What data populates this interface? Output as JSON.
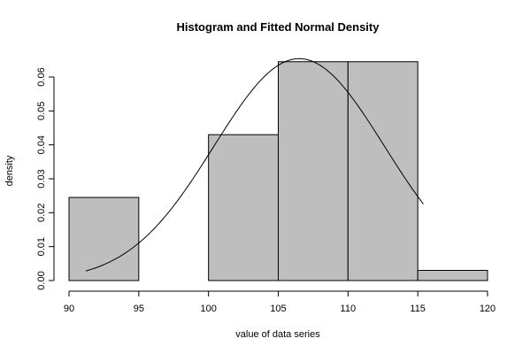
{
  "chart_data": {
    "type": "bar",
    "title": "Histogram and Fitted Normal Density",
    "xlabel": "value of data series",
    "ylabel": "density",
    "xlim": [
      90,
      120
    ],
    "ylim": [
      0,
      0.065
    ],
    "x_ticks": [
      "90",
      "95",
      "100",
      "105",
      "110",
      "115",
      "120"
    ],
    "y_ticks": [
      "0.00",
      "0.01",
      "0.02",
      "0.03",
      "0.04",
      "0.05",
      "0.06"
    ],
    "bins": [
      {
        "from": 90,
        "to": 95,
        "density": 0.0245
      },
      {
        "from": 95,
        "to": 100,
        "density": 0
      },
      {
        "from": 100,
        "to": 105,
        "density": 0.043
      },
      {
        "from": 105,
        "to": 110,
        "density": 0.0645
      },
      {
        "from": 110,
        "to": 115,
        "density": 0.0645
      },
      {
        "from": 115,
        "to": 120,
        "density": 0.003
      }
    ],
    "normal_fit": {
      "mean": 106.5,
      "sd": 6.1,
      "x_range": [
        91.2,
        115.4
      ]
    },
    "grid": false,
    "bar_color": "#bebebe"
  }
}
